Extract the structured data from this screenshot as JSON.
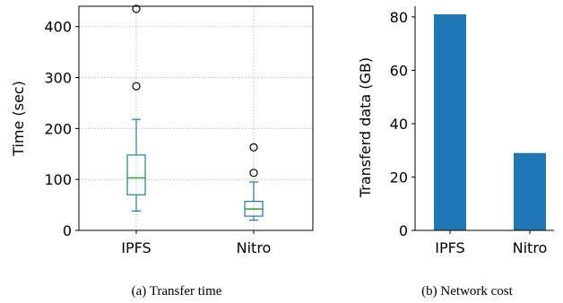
{
  "chart_data": [
    {
      "type": "box",
      "caption": "(a) Transfer time",
      "ylabel": "Time (sec)",
      "categories": [
        "IPFS",
        "Nitro"
      ],
      "ylim": [
        0,
        440
      ],
      "yticks": [
        0,
        100,
        200,
        300,
        400
      ],
      "grid": true,
      "colors": {
        "box": "#1f77b4",
        "median": "#2ca02c"
      },
      "boxes": [
        {
          "name": "IPFS",
          "whisker_low": 38,
          "q1": 70,
          "median": 103,
          "q3": 148,
          "whisker_high": 218,
          "outliers": [
            283,
            435
          ]
        },
        {
          "name": "Nitro",
          "whisker_low": 20,
          "q1": 28,
          "median": 42,
          "q3": 57,
          "whisker_high": 95,
          "outliers": [
            113,
            163
          ]
        }
      ]
    },
    {
      "type": "bar",
      "caption": "(b) Network cost",
      "ylabel": "Transferd data (GB)",
      "categories": [
        "IPFS",
        "Nitro"
      ],
      "values": [
        81,
        29
      ],
      "ylim": [
        0,
        84
      ],
      "yticks": [
        0,
        20,
        40,
        60,
        80
      ],
      "grid": false,
      "colors": {
        "bar": "#1f77b4"
      }
    }
  ]
}
